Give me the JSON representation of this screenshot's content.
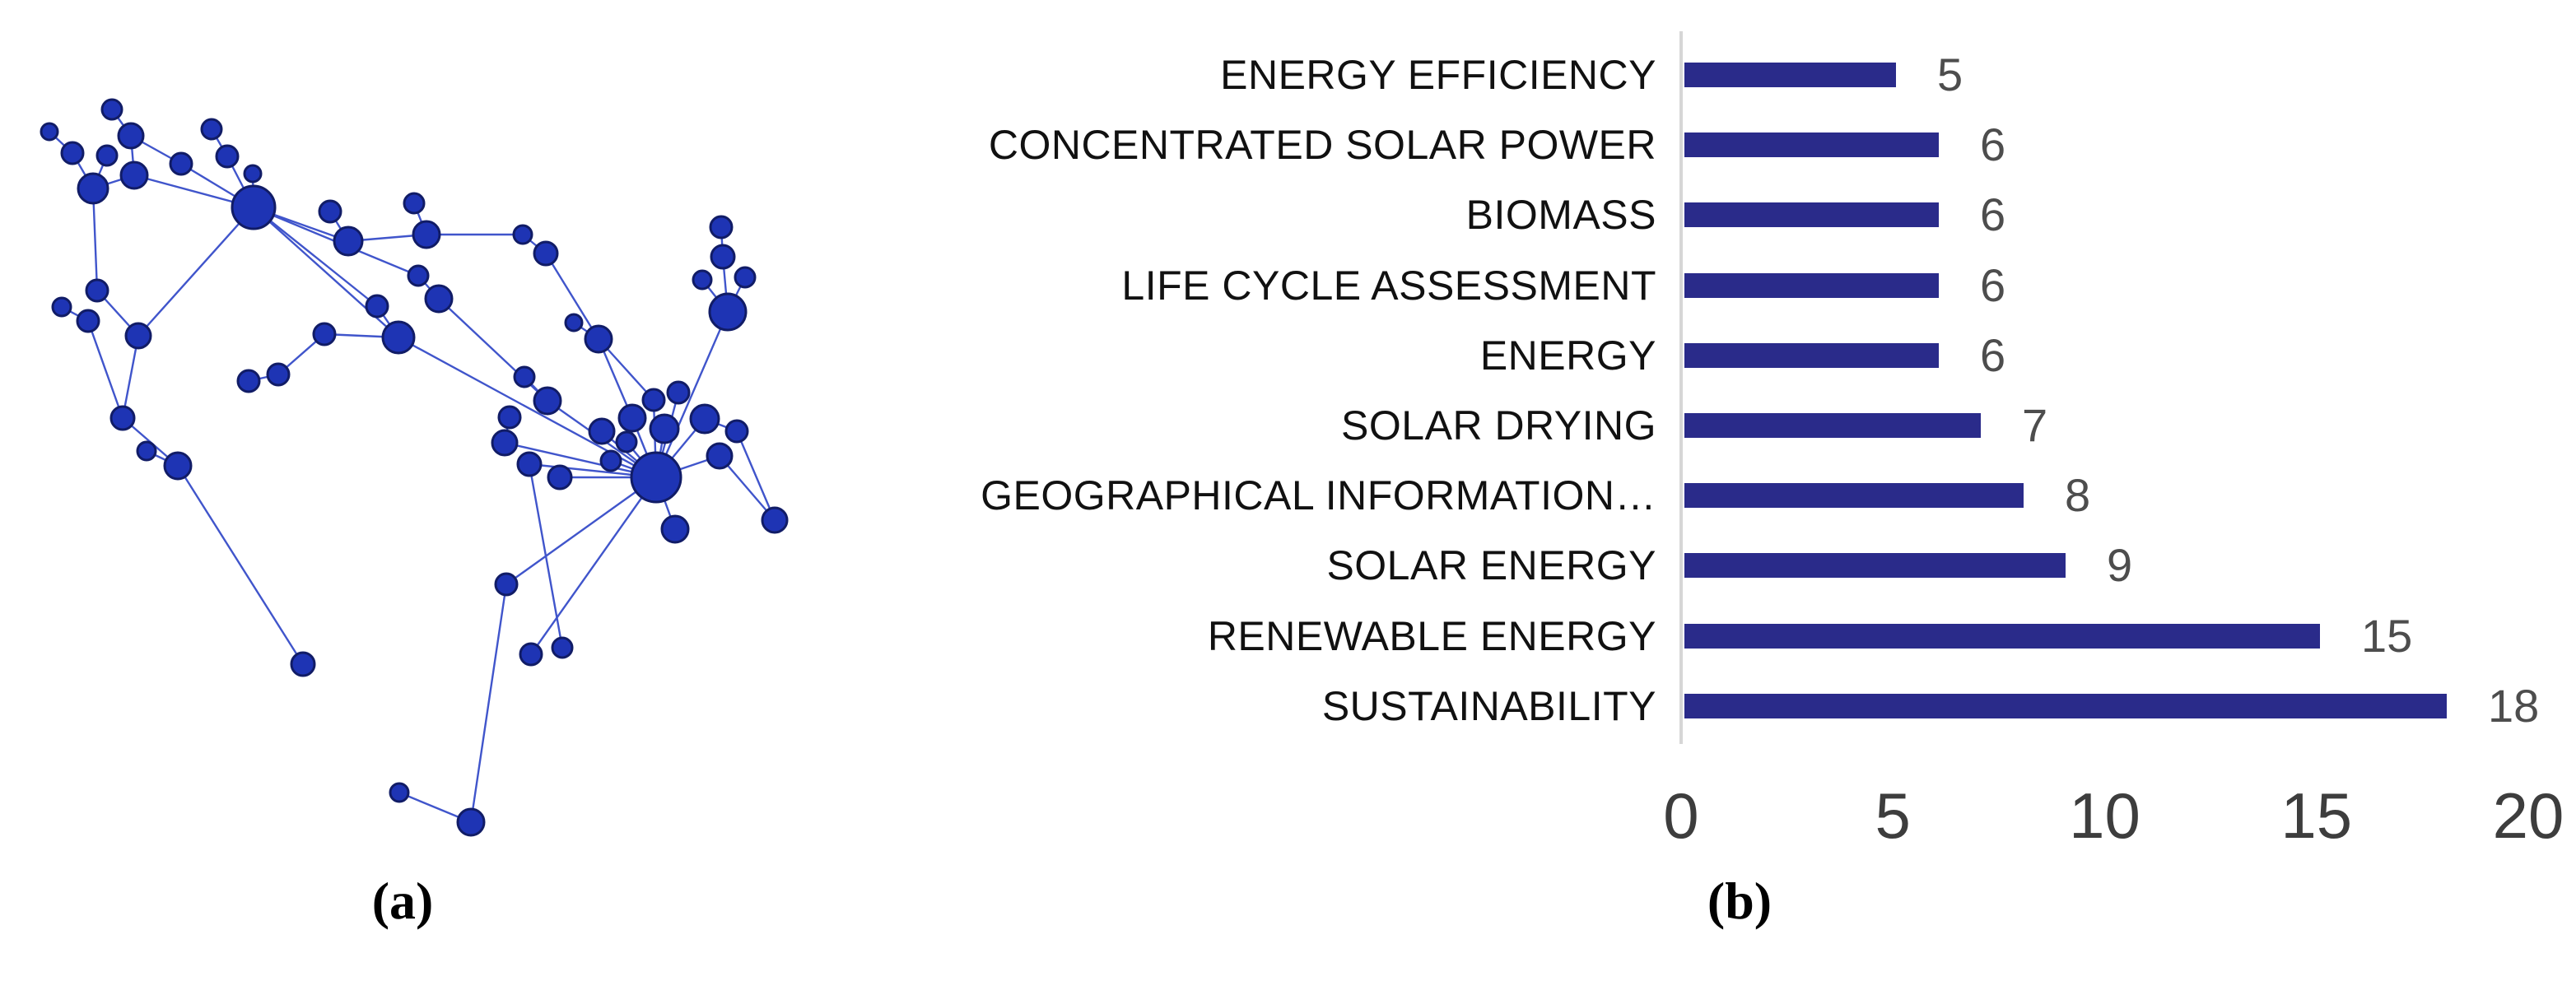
{
  "figure": {
    "panel_a": {
      "caption": "(a)"
    },
    "panel_b": {
      "caption": "(b)"
    }
  },
  "colors": {
    "bar_fill": "#2a2b8a",
    "axis_line": "#d6d6d6",
    "value_label": "#4d4d4d",
    "tick_label": "#3d3d3d",
    "node_fill": "#1e34b4",
    "node_stroke": "#111c66",
    "edge_stroke": "#4055cb"
  },
  "chart_data": [
    {
      "type": "bar",
      "orientation": "horizontal",
      "title": "",
      "xlabel": "",
      "ylabel": "",
      "categories": [
        "ENERGY EFFICIENCY",
        "CONCENTRATED SOLAR POWER",
        "BIOMASS",
        "LIFE CYCLE ASSESSMENT",
        "ENERGY",
        "SOLAR DRYING",
        "GEOGRAPHICAL INFORMATION…",
        "SOLAR ENERGY",
        "RENEWABLE ENERGY",
        "SUSTAINABILITY"
      ],
      "values": [
        5,
        6,
        6,
        6,
        6,
        7,
        8,
        9,
        15,
        18
      ],
      "xlim": [
        0,
        20
      ],
      "x_ticks": [
        0,
        5,
        10,
        15,
        20
      ],
      "grid": false,
      "legend": null,
      "value_labels_shown": true
    },
    {
      "type": "network",
      "description": "keyword co-occurrence network, single blue community, two dominant hubs",
      "nodes": [
        [
          136,
          133,
          12
        ],
        [
          60,
          160,
          10
        ],
        [
          88,
          186,
          13
        ],
        [
          159,
          165,
          15
        ],
        [
          130,
          189,
          12
        ],
        [
          113,
          229,
          18
        ],
        [
          163,
          213,
          16
        ],
        [
          220,
          199,
          13
        ],
        [
          276,
          190,
          13
        ],
        [
          257,
          157,
          12
        ],
        [
          307,
          211,
          10
        ],
        [
          308,
          252,
          26
        ],
        [
          118,
          353,
          13
        ],
        [
          75,
          373,
          11
        ],
        [
          107,
          390,
          13
        ],
        [
          168,
          408,
          15
        ],
        [
          149,
          508,
          14
        ],
        [
          178,
          548,
          11
        ],
        [
          216,
          566,
          16
        ],
        [
          368,
          807,
          14
        ],
        [
          401,
          257,
          13
        ],
        [
          423,
          293,
          17
        ],
        [
          503,
          247,
          12
        ],
        [
          518,
          285,
          16
        ],
        [
          508,
          335,
          12
        ],
        [
          533,
          363,
          16
        ],
        [
          458,
          372,
          13
        ],
        [
          484,
          410,
          19
        ],
        [
          394,
          406,
          13
        ],
        [
          338,
          455,
          13
        ],
        [
          302,
          463,
          13
        ],
        [
          635,
          285,
          11
        ],
        [
          663,
          308,
          14
        ],
        [
          697,
          392,
          10
        ],
        [
          727,
          412,
          16
        ],
        [
          637,
          458,
          12
        ],
        [
          665,
          487,
          16
        ],
        [
          619,
          507,
          13
        ],
        [
          613,
          538,
          15
        ],
        [
          643,
          564,
          14
        ],
        [
          680,
          580,
          14
        ],
        [
          731,
          524,
          15
        ],
        [
          742,
          560,
          12
        ],
        [
          761,
          537,
          12
        ],
        [
          768,
          508,
          16
        ],
        [
          794,
          486,
          13
        ],
        [
          824,
          477,
          13
        ],
        [
          807,
          521,
          17
        ],
        [
          797,
          580,
          30
        ],
        [
          856,
          509,
          17
        ],
        [
          895,
          524,
          13
        ],
        [
          874,
          554,
          15
        ],
        [
          941,
          632,
          15
        ],
        [
          820,
          643,
          16
        ],
        [
          884,
          379,
          22
        ],
        [
          876,
          276,
          13
        ],
        [
          878,
          312,
          14
        ],
        [
          853,
          340,
          11
        ],
        [
          905,
          337,
          12
        ],
        [
          615,
          710,
          13
        ],
        [
          645,
          795,
          13
        ],
        [
          683,
          787,
          12
        ],
        [
          572,
          999,
          16
        ],
        [
          485,
          963,
          11
        ]
      ],
      "edges": [
        [
          0,
          3
        ],
        [
          1,
          2
        ],
        [
          2,
          5
        ],
        [
          4,
          5
        ],
        [
          3,
          6
        ],
        [
          5,
          6
        ],
        [
          3,
          7
        ],
        [
          7,
          11
        ],
        [
          6,
          11
        ],
        [
          8,
          11
        ],
        [
          9,
          8
        ],
        [
          10,
          11
        ],
        [
          5,
          12
        ],
        [
          12,
          15
        ],
        [
          13,
          14
        ],
        [
          14,
          16
        ],
        [
          15,
          16
        ],
        [
          16,
          18
        ],
        [
          17,
          18
        ],
        [
          18,
          19
        ],
        [
          15,
          11
        ],
        [
          11,
          21
        ],
        [
          11,
          24
        ],
        [
          11,
          26
        ],
        [
          11,
          27
        ],
        [
          20,
          21
        ],
        [
          21,
          23
        ],
        [
          22,
          23
        ],
        [
          23,
          31
        ],
        [
          24,
          25
        ],
        [
          25,
          36
        ],
        [
          26,
          27
        ],
        [
          27,
          28
        ],
        [
          28,
          29
        ],
        [
          29,
          30
        ],
        [
          27,
          48
        ],
        [
          31,
          32
        ],
        [
          32,
          34
        ],
        [
          33,
          34
        ],
        [
          34,
          44
        ],
        [
          34,
          45
        ],
        [
          35,
          36
        ],
        [
          36,
          48
        ],
        [
          37,
          38
        ],
        [
          38,
          48
        ],
        [
          39,
          48
        ],
        [
          40,
          48
        ],
        [
          41,
          48
        ],
        [
          42,
          48
        ],
        [
          43,
          48
        ],
        [
          44,
          48
        ],
        [
          45,
          48
        ],
        [
          46,
          48
        ],
        [
          47,
          48
        ],
        [
          48,
          49
        ],
        [
          49,
          50
        ],
        [
          48,
          51
        ],
        [
          51,
          52
        ],
        [
          50,
          52
        ],
        [
          48,
          53
        ],
        [
          48,
          54
        ],
        [
          54,
          56
        ],
        [
          55,
          56
        ],
        [
          54,
          57
        ],
        [
          54,
          58
        ],
        [
          48,
          59
        ],
        [
          59,
          62
        ],
        [
          48,
          60
        ],
        [
          39,
          61
        ],
        [
          62,
          63
        ]
      ]
    }
  ]
}
